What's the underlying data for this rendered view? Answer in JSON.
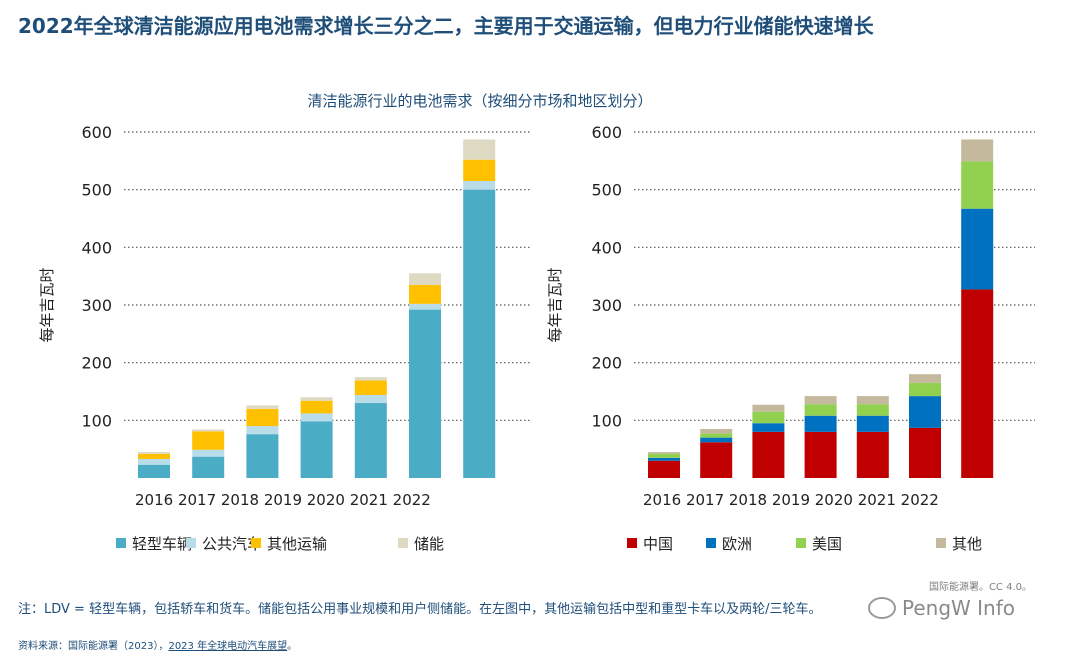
{
  "headline": "2022年全球清洁能源应用电池需求增长三分之二，主要用于交通运输，但电力行业储能快速增长",
  "subtitle": "清洁能源行业的电池需求（按细分市场和地区划分）",
  "credit": "国际能源署。CC 4.0。",
  "note": "注：LDV = 轻型车辆，包括轿车和货车。储能包括公用事业规模和用户侧储能。在左图中，其他运输包括中型和重型卡车以及两轮/三轮车。",
  "source_prefix": "资料来源：国际能源署（2023），",
  "source_link": "2023 年全球电动汽车展望",
  "source_suffix": "。",
  "watermark": "PengW Info",
  "chart_data": [
    {
      "type": "bar",
      "stacked": true,
      "ylabel": "每年吉瓦时",
      "ylim": [
        0,
        600
      ],
      "yticks": [
        100,
        200,
        300,
        400,
        500,
        600
      ],
      "grid": true,
      "categories": [
        "2016",
        "2017",
        "2018",
        "2019",
        "2020",
        "2021",
        "2022"
      ],
      "category_label_text": "2016 2017 2018 2019 2020 2021 2022",
      "legend_position": "bottom",
      "series": [
        {
          "name": "轻型车辆",
          "color": "#4bacc6",
          "values": [
            23,
            37,
            76,
            98,
            130,
            292,
            500
          ]
        },
        {
          "name": "公共汽车",
          "color": "#b8dce8",
          "values": [
            10,
            12,
            14,
            14,
            14,
            10,
            15
          ]
        },
        {
          "name": "其他运输",
          "color": "#ffc000",
          "values": [
            9,
            32,
            30,
            22,
            25,
            33,
            37
          ]
        },
        {
          "name": "储能",
          "color": "#ddd9c3",
          "values": [
            3,
            3,
            6,
            6,
            6,
            20,
            35
          ]
        }
      ]
    },
    {
      "type": "bar",
      "stacked": true,
      "ylabel": "每年吉瓦时",
      "ylim": [
        0,
        600
      ],
      "yticks": [
        100,
        200,
        300,
        400,
        500,
        600
      ],
      "grid": true,
      "categories": [
        "2016",
        "2017",
        "2018",
        "2019",
        "2020",
        "2021",
        "2022"
      ],
      "category_label_text": "2016 2017 2018 2019 2020 2021 2022",
      "legend_position": "bottom",
      "series": [
        {
          "name": "中国",
          "color": "#c00000",
          "values": [
            30,
            62,
            80,
            80,
            80,
            87,
            327
          ]
        },
        {
          "name": "欧洲",
          "color": "#0070c0",
          "values": [
            5,
            8,
            15,
            28,
            28,
            55,
            140
          ]
        },
        {
          "name": "美国",
          "color": "#92d050",
          "values": [
            7,
            7,
            20,
            20,
            20,
            23,
            82
          ]
        },
        {
          "name": "其他",
          "color": "#c4b99c",
          "values": [
            3,
            8,
            12,
            14,
            14,
            15,
            38
          ]
        }
      ]
    }
  ]
}
